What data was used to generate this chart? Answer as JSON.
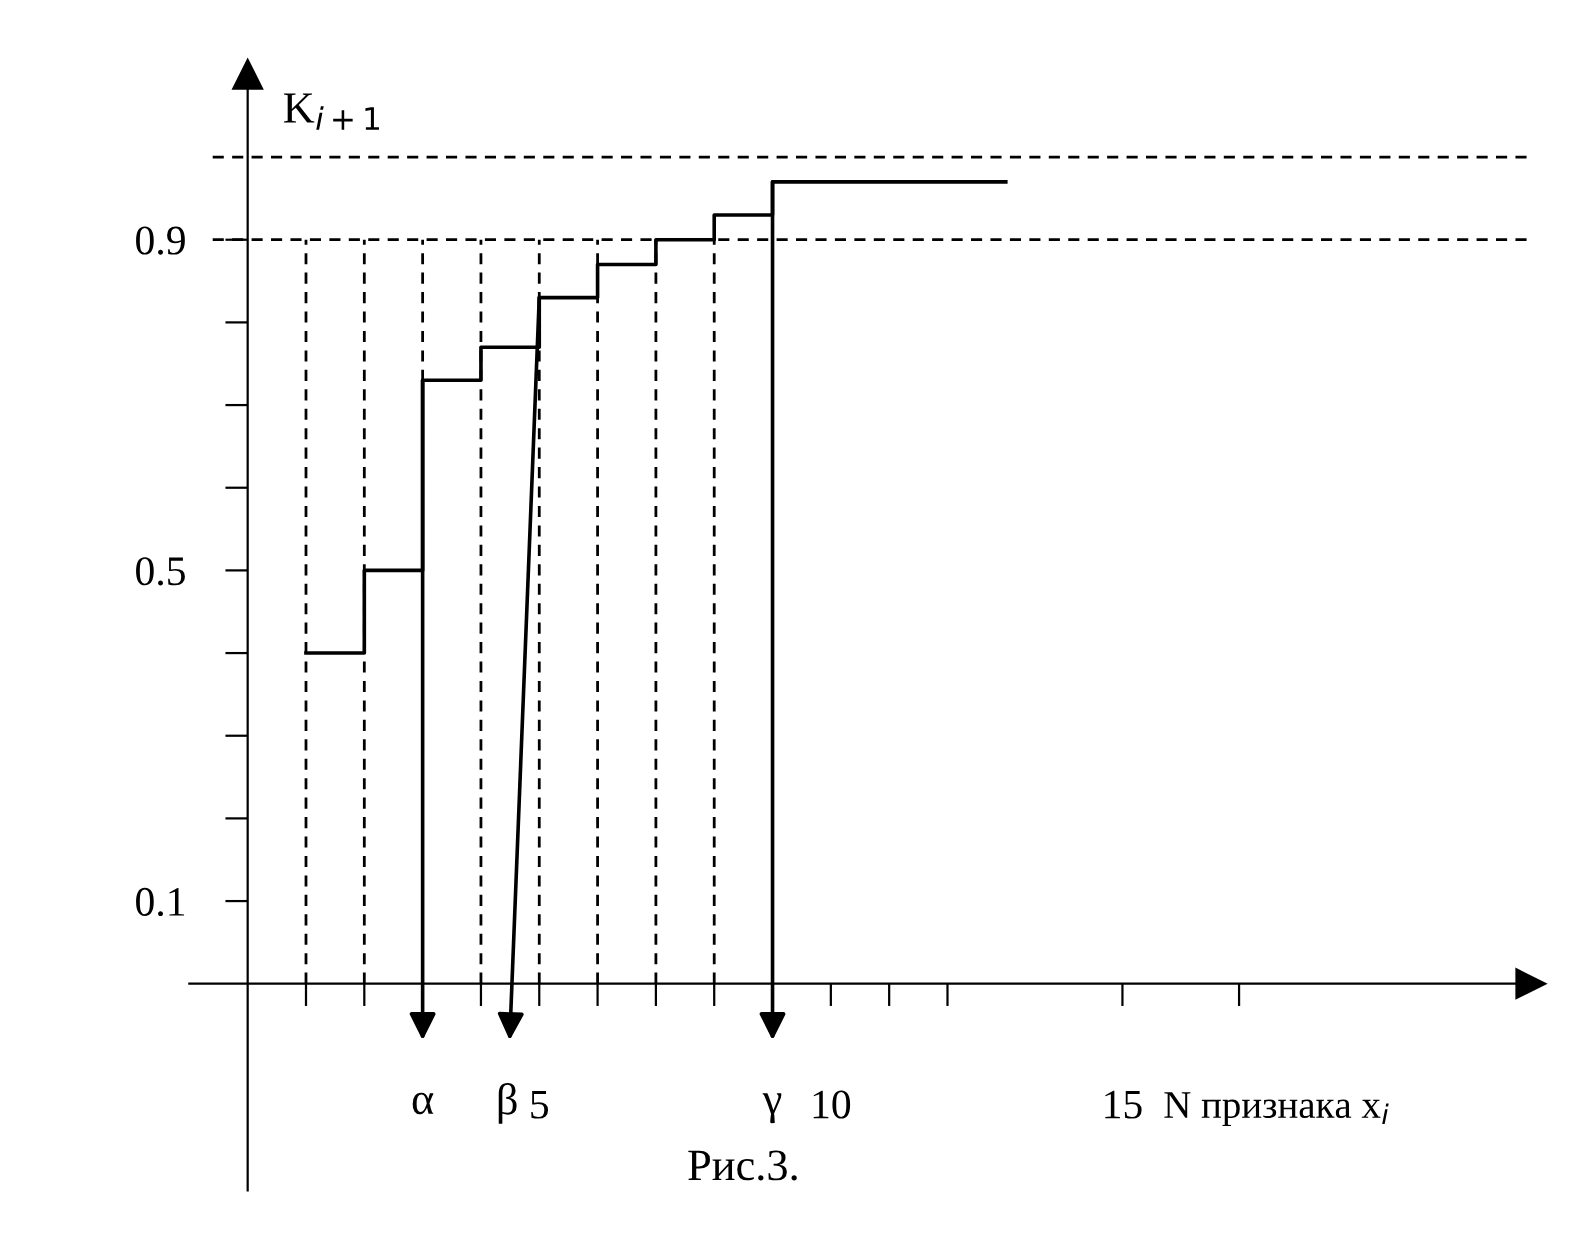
{
  "chart_data": {
    "type": "step",
    "ylabel": "K$_{i+1}$",
    "xlabel": "N признака x$_{i}$",
    "series": [
      {
        "color": "#000000",
        "x": [
          1,
          2,
          3,
          4,
          5,
          6,
          7,
          8,
          9,
          13
        ],
        "values": [
          0.4,
          0.5,
          0.73,
          0.77,
          0.83,
          0.87,
          0.9,
          0.93,
          0.97,
          0.97
        ]
      }
    ],
    "xlim": [
      -1,
      22
    ],
    "ylim": [
      -0.25,
      1.1
    ],
    "xticks": [
      {
        "value": 1,
        "label": null
      },
      {
        "value": 2,
        "label": null
      },
      {
        "value": 3,
        "label": null
      },
      {
        "value": 4,
        "label": null
      },
      5,
      {
        "value": 6,
        "label": null
      },
      {
        "value": 7,
        "label": null
      },
      {
        "value": 8,
        "label": null
      },
      {
        "value": 9,
        "label": null
      },
      10,
      {
        "value": 11,
        "label": null
      },
      {
        "value": 12,
        "label": null
      },
      15,
      {
        "value": 17,
        "label": null
      }
    ],
    "yticks": [
      0.1,
      {
        "value": 0.2,
        "label": null
      },
      {
        "value": 0.3,
        "label": null
      },
      {
        "value": 0.4,
        "label": null
      },
      0.5,
      {
        "value": 0.6,
        "label": null
      },
      {
        "value": 0.7,
        "label": null
      },
      {
        "value": 0.8,
        "label": null
      },
      0.9
    ],
    "ref_lines": [
      {
        "axis": "y",
        "value": 0.9,
        "line_style": "dashed",
        "color": "#000000"
      },
      {
        "axis": "y",
        "value": 1.0,
        "line_style": "dashed",
        "color": "#000000"
      },
      {
        "axis": "x",
        "value": 1,
        "line_style": "dashed",
        "color": "#000000"
      },
      {
        "axis": "x",
        "value": 2,
        "line_style": "dashed",
        "color": "#000000"
      },
      {
        "axis": "x",
        "value": 3,
        "line_style": "dashed",
        "color": "#000000"
      },
      {
        "axis": "x",
        "value": 4,
        "line_style": "dashed",
        "color": "#000000"
      },
      {
        "axis": "x",
        "value": 5,
        "line_style": "dashed",
        "color": "#000000"
      },
      {
        "axis": "x",
        "value": 6,
        "line_style": "dashed",
        "color": "#000000"
      },
      {
        "axis": "x",
        "value": 7,
        "line_style": "dashed",
        "color": "#000000"
      },
      {
        "axis": "x",
        "value": 8,
        "line_style": "dashed",
        "color": "#000000"
      }
    ],
    "annotations": [
      {
        "text": "α",
        "x": 3,
        "y": 0.73
      },
      {
        "text": "β",
        "x": 5,
        "y": 0.83
      },
      {
        "text": "γ",
        "x": 9,
        "y": 0.97
      },
      "Рис.3."
    ]
  }
}
